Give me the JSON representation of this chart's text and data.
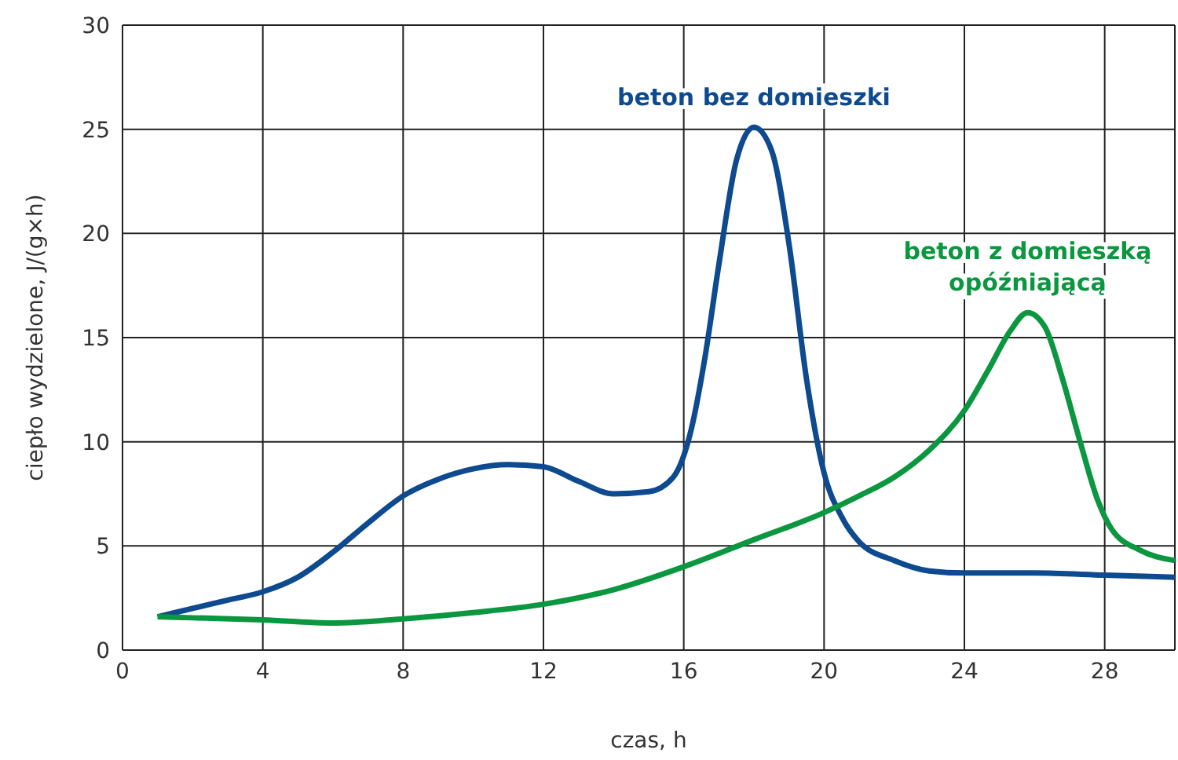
{
  "chart_data": {
    "type": "line",
    "xlabel": "czas, h",
    "ylabel": "ciepło wydzielone, J/(g×h)",
    "xlim": [
      0,
      30
    ],
    "xticks": [
      0,
      4,
      8,
      12,
      16,
      20,
      24,
      28,
      {
        "value": 30,
        "label": null
      }
    ],
    "ylim": [
      0,
      30
    ],
    "yticks": [
      0,
      5,
      10,
      15,
      20,
      25,
      30
    ],
    "grid": true,
    "marker": "none",
    "line_style": "solid",
    "series": [
      {
        "name": "beton bez domieszki",
        "color": "#0d4a8f",
        "x": [
          1,
          2,
          3,
          4,
          5,
          6,
          7,
          8,
          9,
          10,
          11,
          12,
          13,
          14,
          15,
          15.7,
          16.2,
          16.6,
          17,
          17.5,
          18,
          18.5,
          19,
          19.5,
          20,
          20.5,
          21,
          22,
          23,
          24,
          26,
          28,
          30
        ],
        "values": [
          1.6,
          2.0,
          2.4,
          2.8,
          3.5,
          4.7,
          6.1,
          7.4,
          8.2,
          8.7,
          8.9,
          8.8,
          8.1,
          7.5,
          7.6,
          8.3,
          10.5,
          14,
          18.5,
          23.5,
          25.1,
          24,
          19.5,
          13,
          8.5,
          6.4,
          5.2,
          4.3,
          3.8,
          3.7,
          3.7,
          3.6,
          3.5
        ]
      },
      {
        "name": "beton z domieszką opóźniającą",
        "color": "#0b9640",
        "x": [
          1,
          2,
          4,
          6,
          8,
          10,
          12,
          14,
          16,
          18,
          20,
          21,
          22,
          23,
          24,
          24.7,
          25.3,
          25.8,
          26.3,
          26.8,
          27.3,
          27.8,
          28.2,
          29,
          30
        ],
        "values": [
          1.6,
          1.55,
          1.45,
          1.3,
          1.5,
          1.8,
          2.2,
          2.9,
          4.0,
          5.3,
          6.6,
          7.4,
          8.3,
          9.6,
          11.5,
          13.5,
          15.3,
          16.2,
          15.5,
          13,
          10,
          7.2,
          5.8,
          4.8,
          4.3
        ]
      }
    ]
  }
}
